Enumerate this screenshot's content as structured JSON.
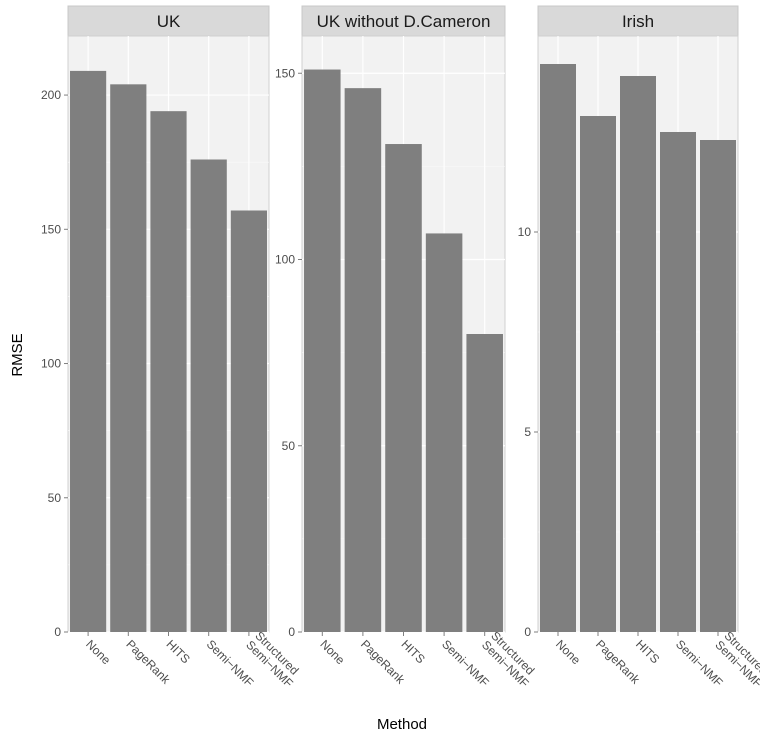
{
  "chart_data": {
    "type": "bar",
    "xlabel": "Method",
    "ylabel": "RMSE",
    "bar_color": "#7f7f7f",
    "panel_background": "#f2f2f2",
    "gridline_color": "#ffffff",
    "categories": [
      "None",
      "PageRank",
      "HITS",
      "Semi-NMF",
      "Structured Semi-NMF"
    ],
    "tick_labels": [
      "None",
      "PageRank",
      "HITS",
      "Semi−NMF",
      "Structured\nSemi−NMF"
    ],
    "grid": true,
    "facets": [
      {
        "title": "UK",
        "ylim": [
          0,
          222
        ],
        "yticks": [
          0,
          50,
          100,
          150,
          200
        ],
        "values": [
          209,
          204,
          194,
          176,
          157
        ]
      },
      {
        "title": "UK without D.Cameron",
        "ylim": [
          0,
          160
        ],
        "yticks": [
          0,
          50,
          100,
          150
        ],
        "values": [
          151,
          146,
          131,
          107,
          80
        ]
      },
      {
        "title": "Irish",
        "ylim": [
          0,
          14.9
        ],
        "yticks": [
          0,
          5,
          10
        ],
        "values": [
          14.2,
          12.9,
          13.9,
          12.5,
          12.3
        ]
      }
    ]
  }
}
